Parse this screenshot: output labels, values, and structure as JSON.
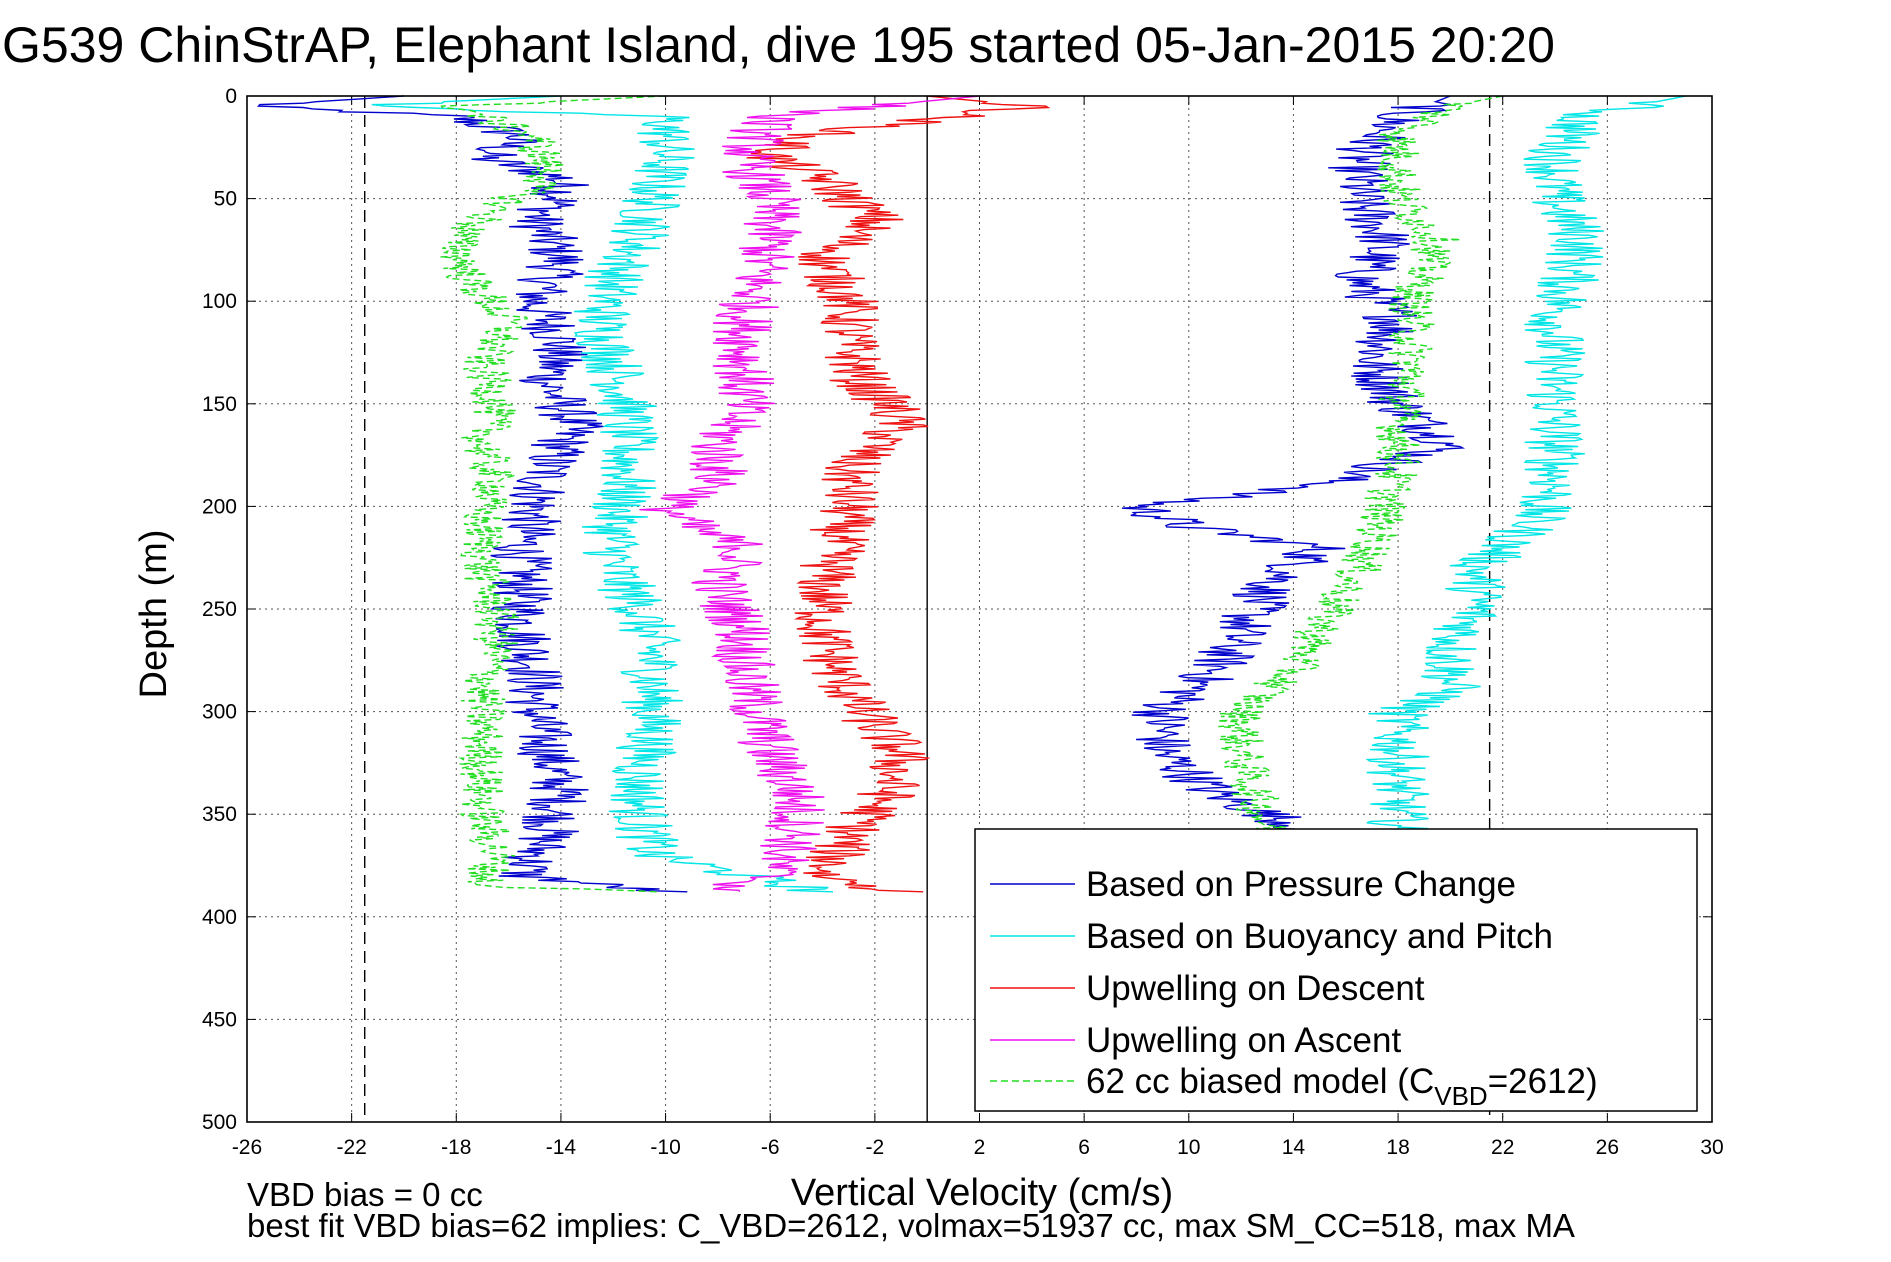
{
  "chart_data": {
    "type": "line",
    "title": "G539 ChinStrAP, Elephant Island, dive 195 started 05-Jan-2015 20:20",
    "xlabel": "Vertical Velocity (cm/s)",
    "ylabel": "Depth (m)",
    "xlim": [
      -26,
      30
    ],
    "ylim": [
      0,
      500
    ],
    "y_reversed": true,
    "xticks": [
      "-26",
      "-22",
      "-18",
      "-14",
      "-10",
      "-6",
      "-2",
      "2",
      "6",
      "10",
      "14",
      "18",
      "22",
      "26",
      "30"
    ],
    "yticks": [
      "0",
      "50",
      "100",
      "150",
      "200",
      "250",
      "300",
      "350",
      "400",
      "450",
      "500"
    ],
    "grid": true,
    "legend_position": "bottom-right",
    "reference_lines": {
      "zero": 0,
      "left_dashed": -21.5,
      "right_dashed": 21.5
    },
    "legend": [
      {
        "label": "Based on Pressure Change",
        "color": "#0000cc",
        "dash": false
      },
      {
        "label": "Based on Buoyancy and Pitch",
        "color": "#00e5e5",
        "dash": false
      },
      {
        "label": "Upwelling on Descent",
        "color": "#ee1111",
        "dash": false
      },
      {
        "label": "Upwelling on Ascent",
        "color": "#ee11ee",
        "dash": false
      },
      {
        "label_pre": "62 cc biased model (C",
        "label_sub": "VBD",
        "label_post": "=2612)",
        "color": "#22dd22",
        "dash": true
      }
    ],
    "series": [
      {
        "key": "pressure_descent",
        "color": "#0000cc",
        "depth": [
          0,
          5,
          10,
          20,
          30,
          40,
          50,
          60,
          80,
          100,
          120,
          140,
          160,
          180,
          200,
          220,
          240,
          260,
          280,
          300,
          320,
          340,
          360,
          380,
          388
        ],
        "values": [
          -20,
          -26,
          -18,
          -15.5,
          -17,
          -14,
          -14,
          -15,
          -14,
          -15,
          -14,
          -14.5,
          -13.5,
          -14.5,
          -15,
          -15.5,
          -15.5,
          -15.5,
          -15,
          -15,
          -14.5,
          -14,
          -14.5,
          -15.5,
          -10
        ]
      },
      {
        "key": "pressure_ascent",
        "color": "#0000cc",
        "depth": [
          0,
          10,
          30,
          50,
          70,
          90,
          110,
          130,
          150,
          170,
          190,
          200,
          210,
          220,
          240,
          260,
          280,
          300,
          320,
          340,
          360,
          370
        ],
        "values": [
          20,
          18,
          16.5,
          16.5,
          17.5,
          16.5,
          18,
          17,
          18,
          20,
          15,
          8,
          10,
          15,
          13,
          12,
          11,
          9,
          9,
          11,
          15,
          16
        ]
      },
      {
        "key": "buoyancy_descent",
        "color": "#00e5e5",
        "depth": [
          0,
          5,
          10,
          30,
          50,
          70,
          90,
          110,
          130,
          150,
          170,
          190,
          210,
          230,
          250,
          270,
          290,
          310,
          330,
          350,
          370,
          388
        ],
        "values": [
          -14,
          -22,
          -10,
          -10,
          -10.5,
          -11,
          -12,
          -12.5,
          -12,
          -11.5,
          -11.5,
          -11.5,
          -12,
          -12,
          -11,
          -10.5,
          -10.5,
          -10.5,
          -11,
          -11,
          -10.5,
          -4
        ]
      },
      {
        "key": "buoyancy_ascent",
        "color": "#00e5e5",
        "depth": [
          0,
          10,
          30,
          50,
          70,
          90,
          110,
          130,
          150,
          170,
          190,
          210,
          230,
          250,
          270,
          290,
          300,
          320,
          340,
          360
        ],
        "values": [
          29,
          25,
          24,
          24,
          25,
          24.5,
          24,
          24,
          24,
          24,
          24,
          23,
          21,
          21,
          20,
          20,
          18,
          18,
          18,
          18
        ]
      },
      {
        "key": "upwelling_descent",
        "color": "#ee1111",
        "depth": [
          0,
          5,
          20,
          30,
          40,
          50,
          60,
          80,
          100,
          120,
          140,
          150,
          160,
          170,
          180,
          200,
          220,
          240,
          260,
          280,
          300,
          320,
          340,
          360,
          380,
          388
        ],
        "values": [
          0,
          4,
          -5,
          -6,
          -4,
          -3,
          -2,
          -4,
          -3,
          -3,
          -2.5,
          -1.5,
          -1,
          -2,
          -3,
          -3,
          -3.5,
          -4,
          -4,
          -3.5,
          -2.5,
          -1,
          -1.5,
          -3,
          -4,
          -1
        ]
      },
      {
        "key": "upwelling_ascent",
        "color": "#ee11ee",
        "depth": [
          0,
          10,
          30,
          50,
          70,
          90,
          110,
          130,
          150,
          170,
          190,
          200,
          210,
          220,
          240,
          260,
          280,
          300,
          320,
          340,
          360,
          380,
          388
        ],
        "values": [
          2,
          -6,
          -7,
          -6,
          -6,
          -6.5,
          -7,
          -7,
          -7,
          -8,
          -8,
          -10,
          -9,
          -7,
          -8,
          -7,
          -7,
          -6.5,
          -6,
          -5,
          -5,
          -6,
          -8
        ]
      },
      {
        "key": "biased_model_descent",
        "color": "#22dd22",
        "dash": true,
        "depth": [
          0,
          5,
          20,
          40,
          55,
          70,
          90,
          110,
          130,
          150,
          170,
          190,
          200,
          210,
          230,
          250,
          270,
          290,
          310,
          330,
          350,
          370,
          385,
          388
        ],
        "values": [
          -10,
          -18,
          -15,
          -14.5,
          -16.5,
          -18,
          -17.5,
          -16,
          -17,
          -16.5,
          -17,
          -16.5,
          -17,
          -17,
          -17,
          -16.5,
          -16.5,
          -17,
          -17,
          -17,
          -17,
          -16.5,
          -17,
          -10
        ]
      },
      {
        "key": "biased_model_ascent",
        "color": "#22dd22",
        "dash": true,
        "depth": [
          0,
          5,
          20,
          50,
          70,
          100,
          130,
          160,
          180,
          200,
          220,
          240,
          260,
          280,
          300,
          320,
          340,
          360
        ],
        "values": [
          22,
          20,
          18,
          18,
          19.5,
          18.5,
          18.5,
          18,
          18,
          17.5,
          17,
          16,
          15,
          14,
          12,
          12,
          12.5,
          13
        ]
      }
    ]
  },
  "notes": {
    "line1": "VBD bias = 0 cc",
    "line2": "best fit VBD bias=62 implies: C_VBD=2612, volmax=51937 cc, max SM_CC=518, max MA"
  }
}
